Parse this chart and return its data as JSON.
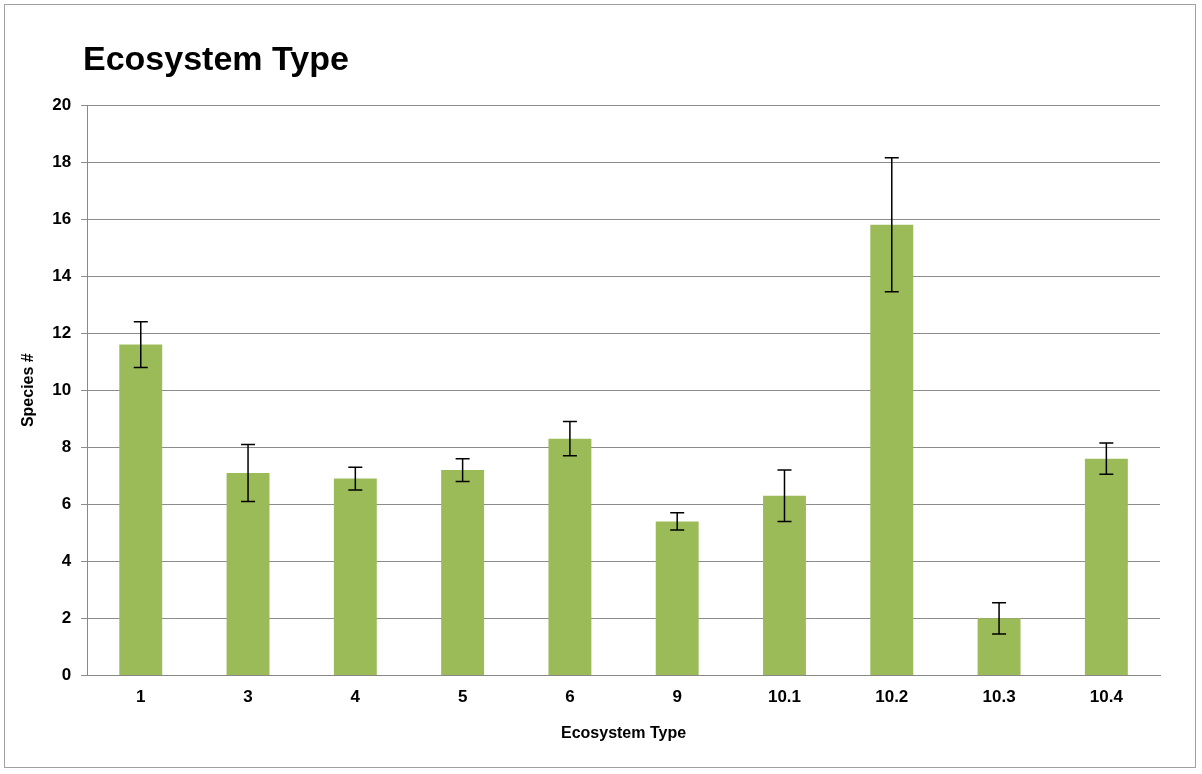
{
  "chart_data": {
    "type": "bar",
    "title": "Ecosystem Type",
    "xlabel": "Ecosystem Type",
    "ylabel": "Species #",
    "categories": [
      "1",
      "3",
      "4",
      "5",
      "6",
      "9",
      "10.1",
      "10.2",
      "10.3",
      "10.4"
    ],
    "values": [
      11.6,
      7.1,
      6.9,
      7.2,
      8.3,
      5.4,
      6.3,
      15.8,
      2.0,
      7.6
    ],
    "errors": [
      0.8,
      1.0,
      0.4,
      0.4,
      0.6,
      0.3,
      0.9,
      2.35,
      0.55,
      0.55
    ],
    "color": "#9bbb59",
    "ylim": [
      0,
      20
    ],
    "yticks": [
      0,
      2,
      4,
      6,
      8,
      10,
      12,
      14,
      16,
      18,
      20
    ],
    "grid": "y",
    "legend": false
  }
}
